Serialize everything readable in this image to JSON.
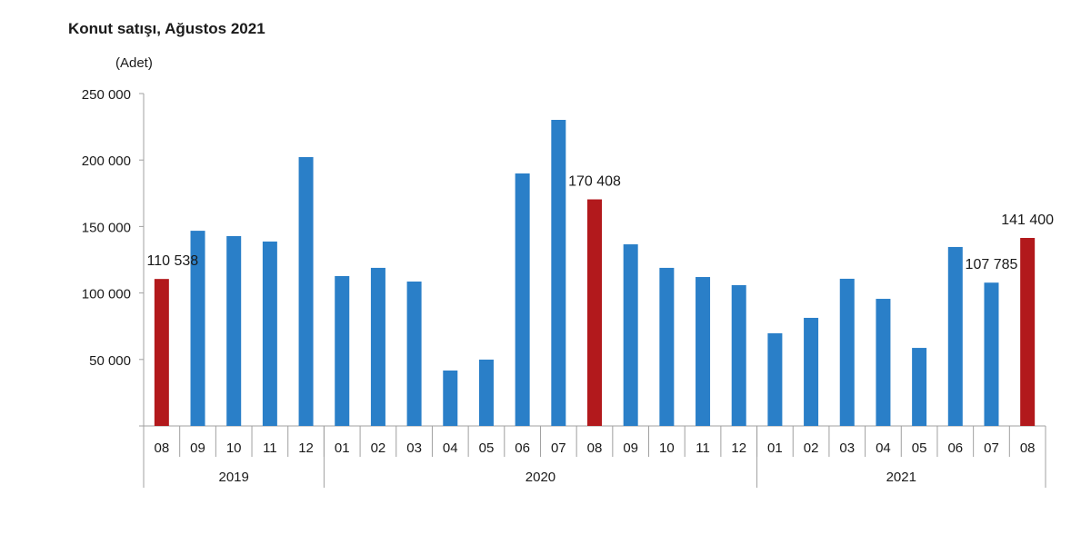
{
  "chart_data": {
    "type": "bar",
    "title": "Konut satışı, Ağustos 2021",
    "ylabel": "(Adet)",
    "xlabel": "",
    "ylim": [
      0,
      250000
    ],
    "yticks": [
      50000,
      100000,
      150000,
      200000,
      250000
    ],
    "ytick_labels": [
      "50 000",
      "100 000",
      "150 000",
      "200 000",
      "250 000"
    ],
    "grid": false,
    "categories": [
      "08",
      "09",
      "10",
      "11",
      "12",
      "01",
      "02",
      "03",
      "04",
      "05",
      "06",
      "07",
      "08",
      "09",
      "10",
      "11",
      "12",
      "01",
      "02",
      "03",
      "04",
      "05",
      "06",
      "07",
      "08"
    ],
    "years": [
      {
        "label": "2019",
        "count": 5
      },
      {
        "label": "2020",
        "count": 12
      },
      {
        "label": "2021",
        "count": 8
      }
    ],
    "values": [
      110538,
      146800,
      142800,
      138700,
      202200,
      112700,
      118900,
      108600,
      41700,
      49900,
      189900,
      230200,
      170408,
      136600,
      118900,
      112000,
      105900,
      69700,
      81300,
      110700,
      95600,
      58700,
      134600,
      107785,
      141400
    ],
    "highlight": [
      0,
      12,
      24
    ],
    "data_labels": [
      {
        "index": 0,
        "text": "110 538"
      },
      {
        "index": 12,
        "text": "170 408"
      },
      {
        "index": 23,
        "text": "107 785"
      },
      {
        "index": 24,
        "text": "141 400"
      }
    ],
    "colors": {
      "bar": "#2a7fc8",
      "highlight": "#b2191c",
      "axis": "#a0a0a0",
      "text": "#1a1a1a"
    }
  }
}
